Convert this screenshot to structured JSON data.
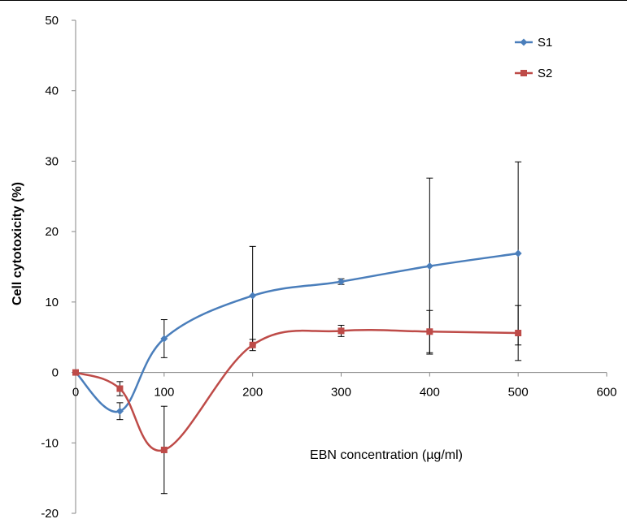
{
  "chart_data": {
    "type": "line",
    "xlabel": "EBN concentration (µg/ml)",
    "ylabel": "Cell cytotoxicity (%)",
    "xlim": [
      0,
      600
    ],
    "ylim": [
      -20,
      50
    ],
    "x_ticks": [
      0,
      100,
      200,
      300,
      400,
      500,
      600
    ],
    "y_ticks": [
      -20,
      -10,
      0,
      10,
      20,
      30,
      40,
      50
    ],
    "grid": false,
    "legend_position": "top-right",
    "smoothed": true,
    "series": [
      {
        "name": "S1",
        "color": "#4a7ebb",
        "marker": "diamond",
        "x": [
          0,
          50,
          100,
          200,
          300,
          400,
          500
        ],
        "y": [
          0,
          -5.5,
          4.8,
          10.9,
          12.9,
          15.1,
          16.9
        ],
        "err": [
          0,
          1.2,
          2.7,
          7.0,
          0.4,
          12.5,
          13.0
        ]
      },
      {
        "name": "S2",
        "color": "#be4b48",
        "marker": "square",
        "x": [
          0,
          50,
          100,
          200,
          300,
          400,
          500
        ],
        "y": [
          0,
          -2.3,
          -11.0,
          3.9,
          5.9,
          5.8,
          5.6
        ],
        "err": [
          0,
          1.0,
          6.2,
          0.8,
          0.8,
          3.0,
          3.9
        ]
      }
    ]
  }
}
